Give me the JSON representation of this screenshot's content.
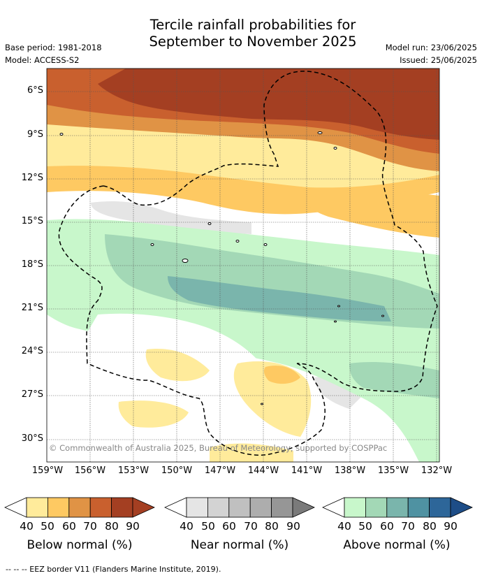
{
  "title_line1": "Tercile rainfall probabilities for",
  "title_line2": "September to November 2025",
  "meta": {
    "base_period": "Base period: 1981-2018",
    "model": "Model: ACCESS-S2",
    "model_run": "Model run: 23/06/2025",
    "issued": "Issued: 25/06/2025"
  },
  "map": {
    "lat_labels": [
      "6°S",
      "9°S",
      "12°S",
      "15°S",
      "18°S",
      "21°S",
      "24°S",
      "27°S",
      "30°S"
    ],
    "lon_labels": [
      "159°W",
      "156°W",
      "153°W",
      "150°W",
      "147°W",
      "144°W",
      "141°W",
      "138°W",
      "135°W",
      "132°W"
    ],
    "copyright": "© Commonwealth of Australia 2025, Bureau of Meteorology, supported by COSPPac"
  },
  "legends": [
    {
      "title": "Below normal (%)",
      "ticks": [
        "40",
        "50",
        "60",
        "70",
        "80",
        "90"
      ],
      "colors": [
        "#ffffff",
        "#ffeb9b",
        "#fec962",
        "#e09345",
        "#c9602e",
        "#a43f22",
        "#a43f22"
      ]
    },
    {
      "title": "Near normal (%)",
      "ticks": [
        "40",
        "50",
        "60",
        "70",
        "80",
        "90"
      ],
      "colors": [
        "#ffffff",
        "#e5e5e5",
        "#d3d3d3",
        "#c0c0c0",
        "#adadad",
        "#969696",
        "#7a7a7a"
      ]
    },
    {
      "title": "Above normal (%)",
      "ticks": [
        "40",
        "50",
        "60",
        "70",
        "80",
        "90"
      ],
      "colors": [
        "#ffffff",
        "#c8f7cb",
        "#a3d8b6",
        "#7ab5ac",
        "#4f92a2",
        "#2d6699",
        "#1e4d87"
      ]
    }
  ],
  "footnote": "--  --  -- EEZ border V11 (Flanders Marine Institute, 2019)."
}
